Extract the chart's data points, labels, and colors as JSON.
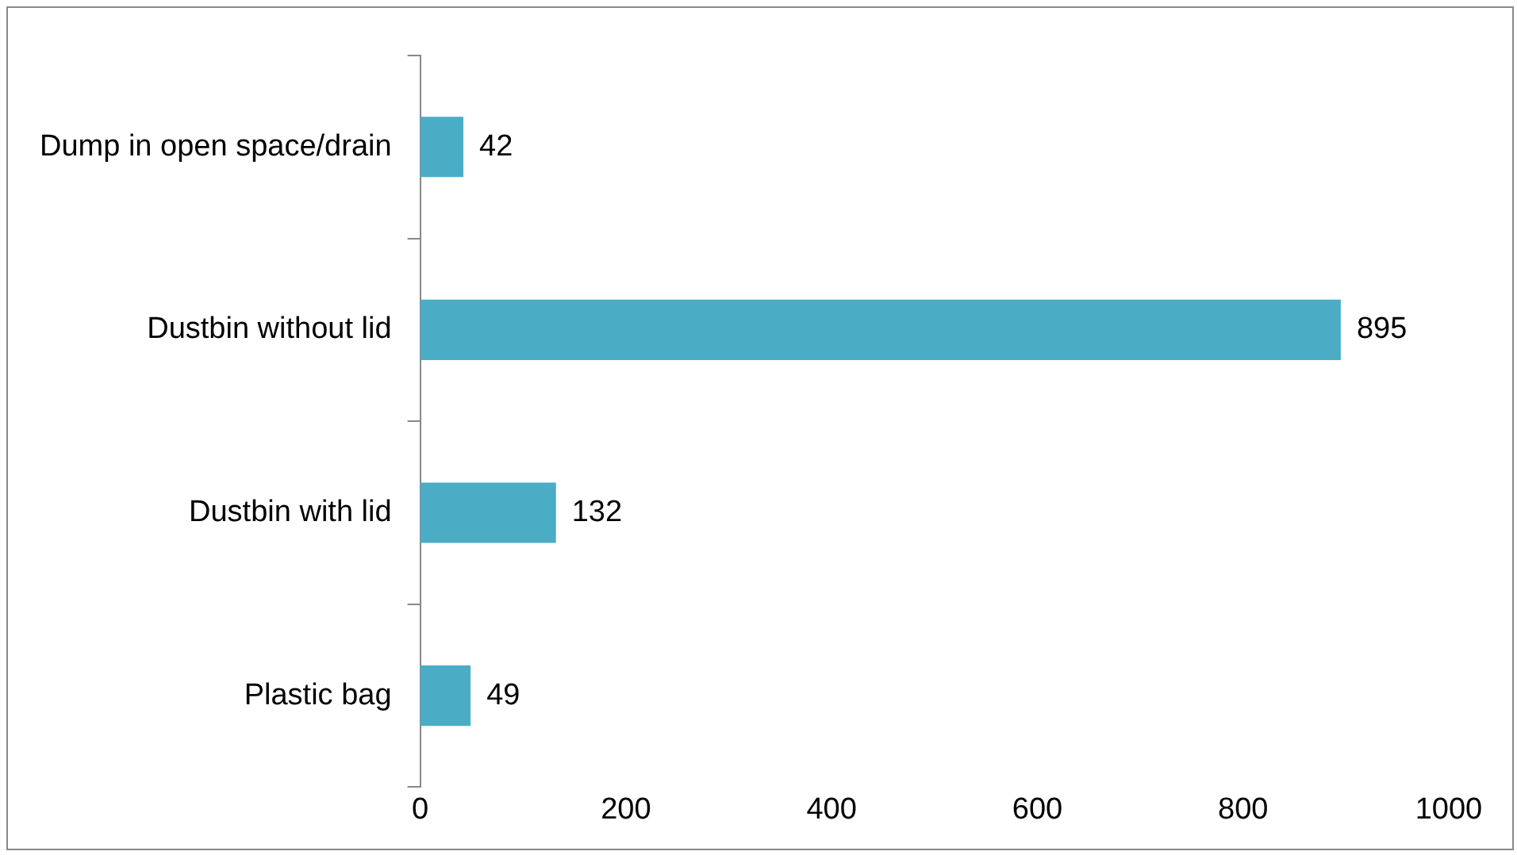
{
  "chart_data": {
    "type": "bar",
    "orientation": "horizontal",
    "categories": [
      "Dump in open space/drain",
      "Dustbin without lid",
      "Dustbin with lid",
      "Plastic bag"
    ],
    "values": [
      42,
      895,
      132,
      49
    ],
    "color": "#4bacc6",
    "xlim": [
      0,
      1000
    ],
    "xticks": [
      0,
      200,
      400,
      600,
      800,
      1000
    ],
    "grid": false,
    "legend": false,
    "data_labels": true
  }
}
